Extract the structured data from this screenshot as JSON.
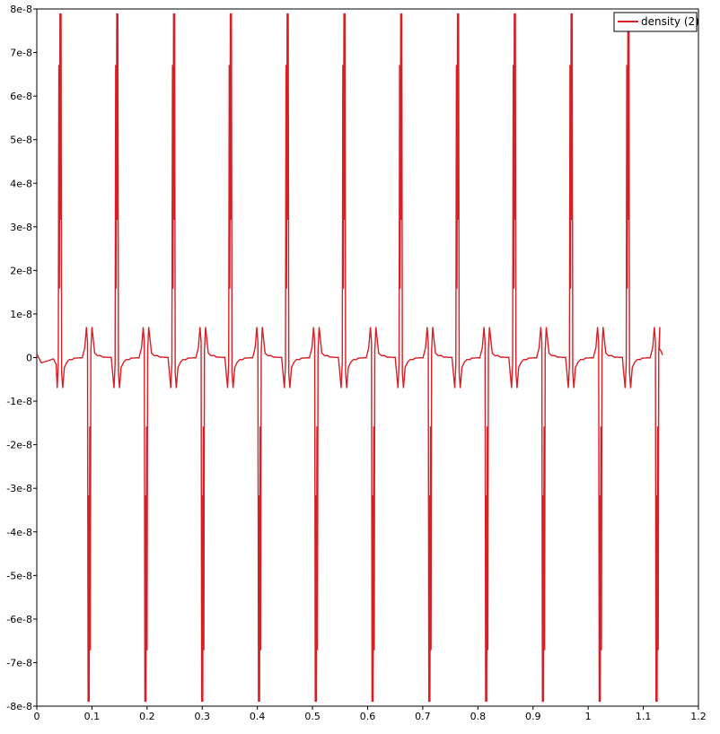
{
  "chart_data": {
    "type": "line",
    "title": "",
    "xlabel": "",
    "ylabel": "",
    "xlim": [
      0,
      1.2
    ],
    "ylim": [
      -8e-08,
      8e-08
    ],
    "x_ticks": [
      0,
      0.1,
      0.2,
      0.3,
      0.4,
      0.5,
      0.6,
      0.7,
      0.8,
      0.9,
      1,
      1.1,
      1.2
    ],
    "x_tick_labels": [
      "0",
      "0.1",
      "0.2",
      "0.3",
      "0.4",
      "0.5",
      "0.6",
      "0.7",
      "0.8",
      "0.9",
      "1",
      "1.1",
      "1.2"
    ],
    "y_ticks": [
      8e-08,
      7e-08,
      6e-08,
      5e-08,
      4e-08,
      3e-08,
      2e-08,
      1e-08,
      0,
      -1e-08,
      -2e-08,
      -3e-08,
      -4e-08,
      -5e-08,
      -6e-08,
      -7e-08,
      -8e-08
    ],
    "y_tick_labels": [
      "8e-8",
      "7e-8",
      "6e-8",
      "5e-8",
      "4e-8",
      "3e-8",
      "2e-8",
      "1e-8",
      "0",
      "-1e-8",
      "-2e-8",
      "-3e-8",
      "-4e-8",
      "-5e-8",
      "-6e-8",
      "-7e-8",
      "-8e-8"
    ],
    "grid": false,
    "legend": "top-right",
    "series": [
      {
        "name": "density (2)",
        "color": "#d62027",
        "x_range": [
          0,
          1.135
        ],
        "period": 0.1028,
        "positive_spike_centers": [
          0.043,
          0.146,
          0.249,
          0.352,
          0.455,
          0.558,
          0.661,
          0.764,
          0.867,
          0.97,
          1.073
        ],
        "negative_spike_centers": [
          0.094,
          0.197,
          0.3,
          0.403,
          0.506,
          0.609,
          0.712,
          0.815,
          0.918,
          1.021,
          1.124
        ],
        "spike_peak": 7.9e-08,
        "spike_trough": -7.9e-08,
        "side_lobe_amplitude": 7e-09,
        "baseline_ripple": 1.5e-09
      }
    ]
  }
}
